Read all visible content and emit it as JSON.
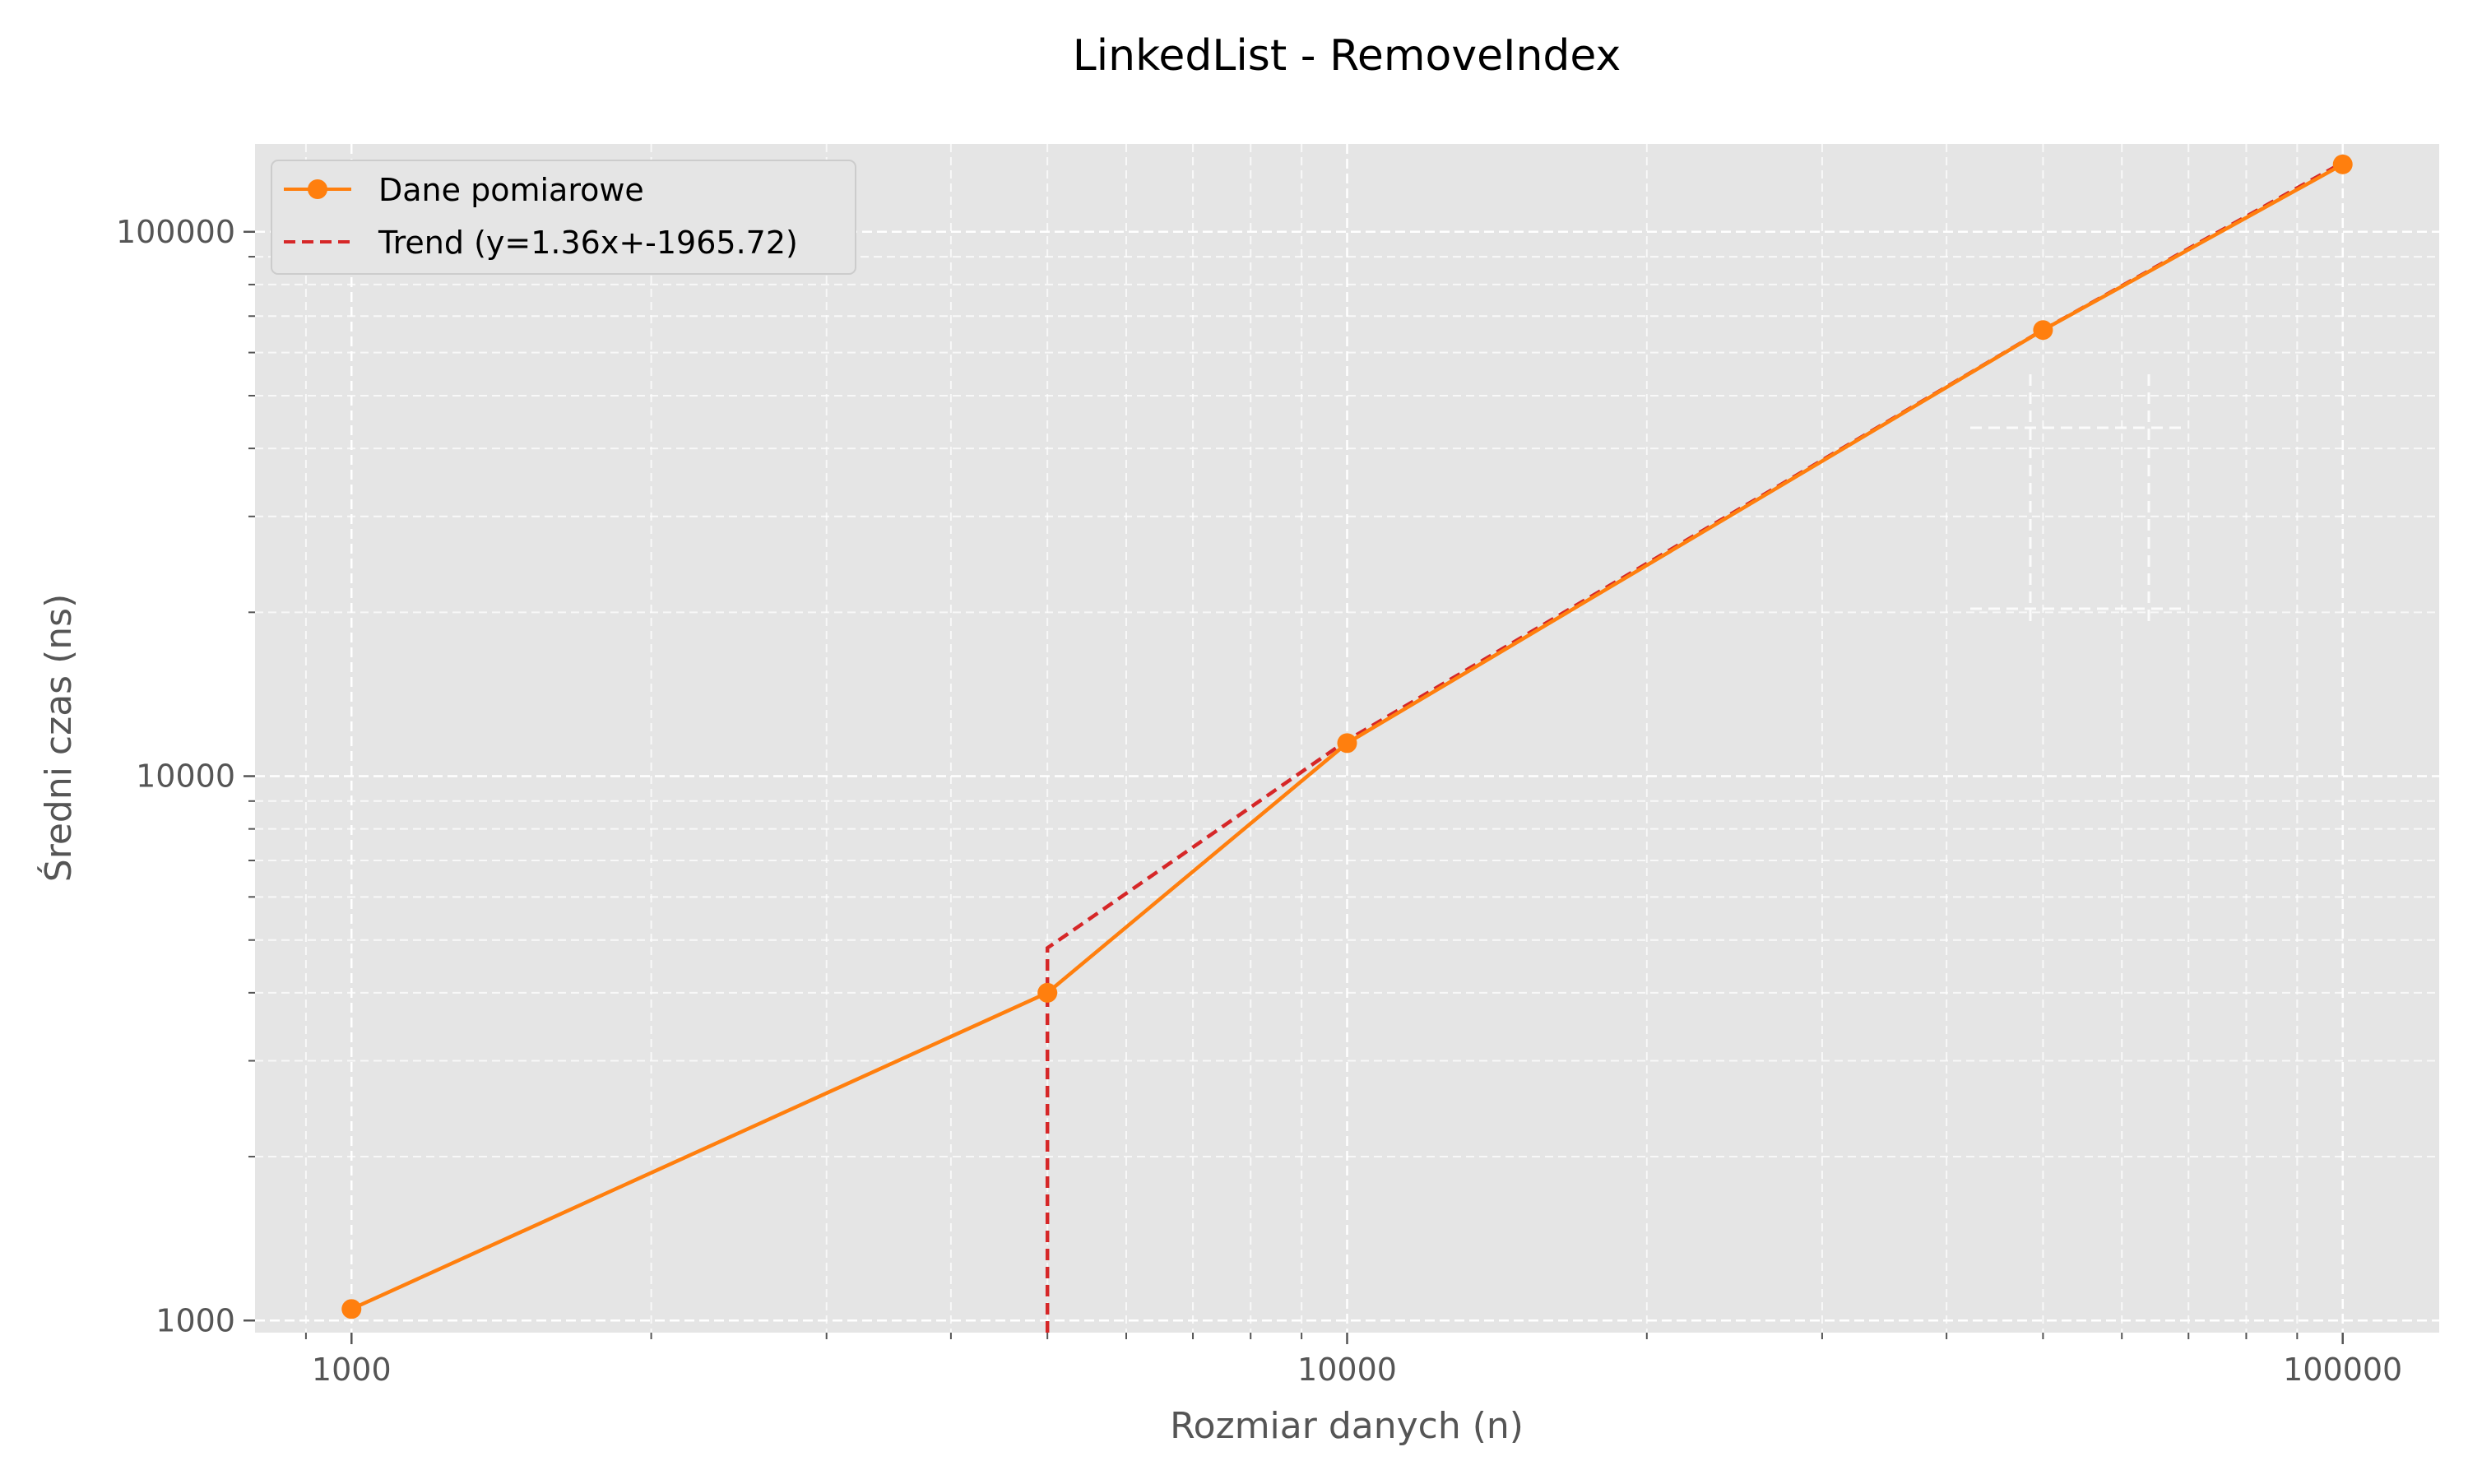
{
  "chart_data": {
    "type": "line",
    "title": "LinkedList - RemoveIndex",
    "xlabel": "Rozmiar danych (n)",
    "ylabel": "Średni czas (ns)",
    "xscale": "log",
    "yscale": "log",
    "xlim": [
      800,
      125000
    ],
    "ylim": [
      950,
      145000
    ],
    "x_ticks": [
      {
        "value": 1000,
        "label": "1000"
      },
      {
        "value": 10000,
        "label": "10000"
      },
      {
        "value": 100000,
        "label": "100000"
      }
    ],
    "y_ticks": [
      {
        "value": 1000,
        "label": "1000"
      },
      {
        "value": 10000,
        "label": "10000"
      },
      {
        "value": 100000,
        "label": "100000"
      }
    ],
    "grid": true,
    "legend": {
      "position": "top-left"
    },
    "series": [
      {
        "name": "Dane pomiarowe",
        "style": "line-marker",
        "color": "#ff7f0e",
        "x": [
          1000,
          5000,
          10000,
          50000,
          100000
        ],
        "y": [
          1050,
          4000,
          11500,
          66000,
          133000
        ]
      },
      {
        "name": "Trend (y=1.36x+-1965.72)",
        "style": "dashed",
        "color": "#d62728",
        "x": [
          5000,
          10000,
          50000,
          100000
        ],
        "y": [
          4834,
          11634,
          66034,
          134034
        ]
      }
    ]
  }
}
